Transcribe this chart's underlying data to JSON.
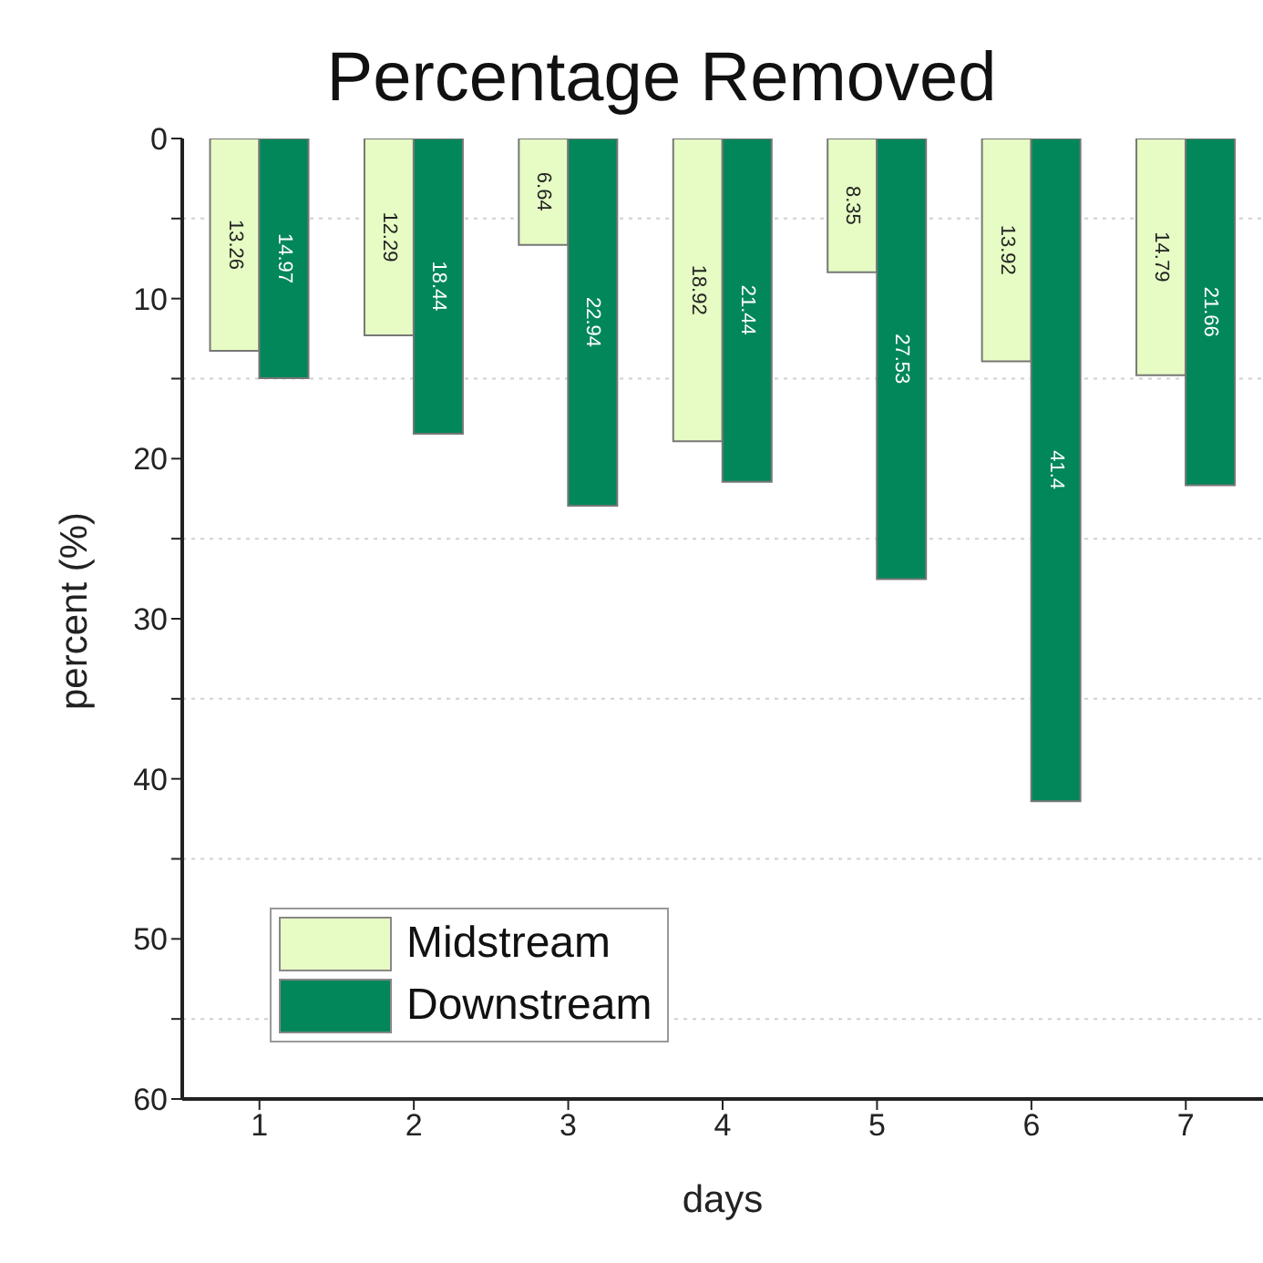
{
  "chart_data": {
    "type": "bar",
    "title": "Percentage Removed",
    "xlabel": "days",
    "ylabel": "percent (%)",
    "categories": [
      "1",
      "2",
      "3",
      "4",
      "5",
      "6",
      "7"
    ],
    "series": [
      {
        "name": "Midstream",
        "color": "#e6fcc4",
        "values": [
          13.26,
          12.29,
          6.64,
          18.92,
          8.35,
          13.92,
          14.79
        ]
      },
      {
        "name": "Downstream",
        "color": "#02875a",
        "values": [
          14.97,
          18.44,
          22.94,
          21.44,
          27.53,
          41.4,
          21.66
        ]
      }
    ],
    "ylim": [
      60,
      0
    ],
    "yticks": [
      0,
      {
        "value": 5,
        "label": null
      },
      10,
      {
        "value": 15,
        "label": null
      },
      20,
      {
        "value": 25,
        "label": null
      },
      30,
      {
        "value": 35,
        "label": null
      },
      40,
      {
        "value": 45,
        "label": null
      },
      50,
      {
        "value": 55,
        "label": null
      },
      60
    ],
    "grid": "y",
    "legend": "bottom left",
    "data_labels": true
  }
}
